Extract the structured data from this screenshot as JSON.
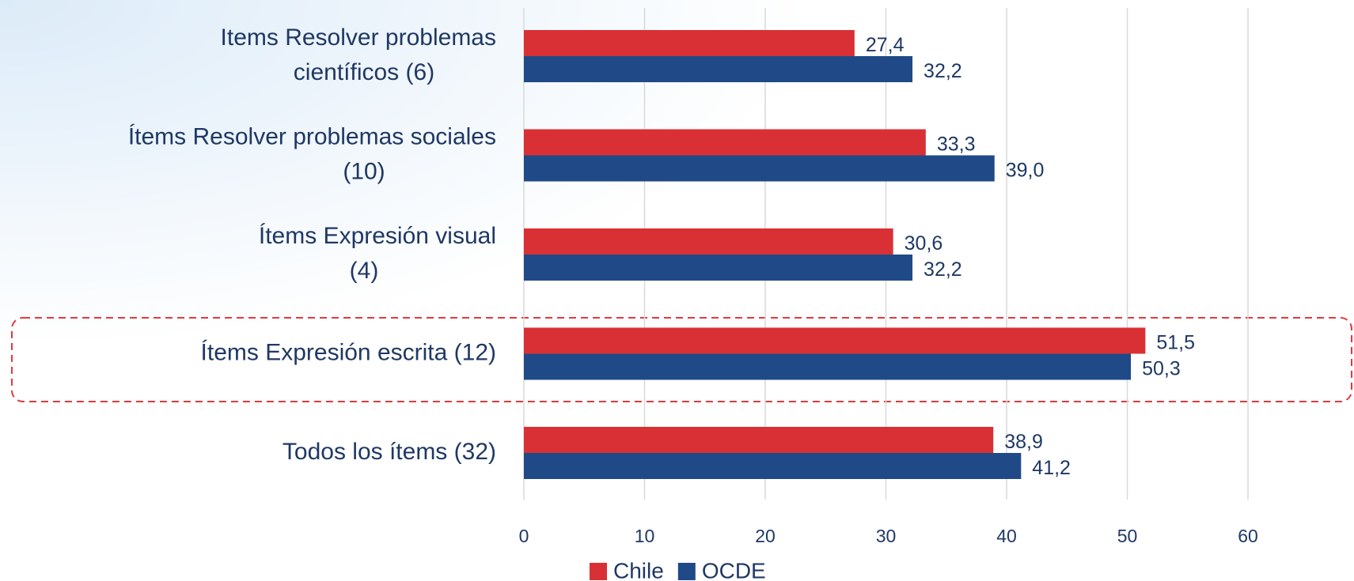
{
  "chart_data": {
    "type": "bar",
    "orientation": "horizontal",
    "categories": [
      [
        "Items Resolver problemas",
        "científicos (6)"
      ],
      [
        "Ítems Resolver problemas sociales",
        "(10)"
      ],
      [
        "Ítems Expresión visual",
        "(4)"
      ],
      [
        "Ítems Expresión escrita (12)"
      ],
      [
        "Todos los ítems (32)"
      ]
    ],
    "series": [
      {
        "name": "Chile",
        "color": "#d93035",
        "values": [
          27.4,
          33.3,
          30.6,
          51.5,
          38.9
        ],
        "value_labels": [
          "27,4",
          "33,3",
          "30,6",
          "51,5",
          "38,9"
        ]
      },
      {
        "name": "OCDE",
        "color": "#1f4a87",
        "values": [
          32.2,
          39.0,
          32.2,
          50.3,
          41.2
        ],
        "value_labels": [
          "32,2",
          "39,0",
          "32,2",
          "50,3",
          "41,2"
        ]
      }
    ],
    "xlim": [
      0,
      60
    ],
    "xticks": [
      0,
      10,
      20,
      30,
      40,
      50,
      60
    ],
    "grid": true,
    "legend": "bottom"
  }
}
